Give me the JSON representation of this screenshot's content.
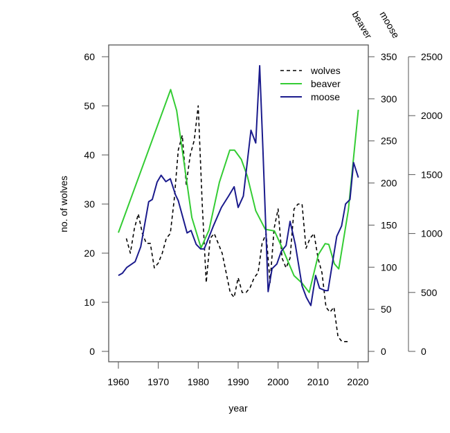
{
  "chart_data": {
    "type": "line",
    "title": "",
    "xlabel": "year",
    "ylabel": "no. of wolves",
    "xlim": [
      1960,
      2020
    ],
    "x_ticks": [
      "1960",
      "1970",
      "1980",
      "1990",
      "2000",
      "2010",
      "2020"
    ],
    "axes": {
      "wolves": {
        "label": "no. of wolves",
        "range": [
          0,
          60
        ],
        "ticks": [
          "0",
          "10",
          "20",
          "30",
          "40",
          "50",
          "60"
        ]
      },
      "beaver": {
        "label": "beaver",
        "range": [
          0,
          350
        ],
        "ticks": [
          "0",
          "50",
          "100",
          "150",
          "200",
          "250",
          "300",
          "350"
        ]
      },
      "moose": {
        "label": "moose",
        "range": [
          0,
          2500
        ],
        "ticks": [
          "0",
          "500",
          "1000",
          "1500",
          "2000",
          "2500"
        ]
      }
    },
    "legend": {
      "position": "top-right",
      "entries": [
        "wolves",
        "beaver",
        "moose"
      ]
    },
    "grid": false,
    "series": [
      {
        "name": "wolves",
        "axis": "wolves",
        "color": "#000000",
        "style": "dashed",
        "x": [
          1962,
          1963,
          1964,
          1965,
          1966,
          1967,
          1968,
          1969,
          1970,
          1971,
          1972,
          1973,
          1974,
          1975,
          1976,
          1977,
          1978,
          1979,
          1980,
          1981,
          1982,
          1983,
          1984,
          1985,
          1986,
          1987,
          1988,
          1989,
          1990,
          1991,
          1992,
          1993,
          1994,
          1995,
          1996,
          1997,
          1998,
          1999,
          2000,
          2001,
          2002,
          2003,
          2004,
          2005,
          2006,
          2007,
          2008,
          2009,
          2010,
          2011,
          2012,
          2013,
          2014,
          2015,
          2016,
          2017,
          2018
        ],
        "y": [
          23,
          20,
          25,
          28,
          24,
          22,
          22,
          17,
          18,
          20,
          23,
          24,
          31,
          41,
          44,
          34,
          40,
          43,
          50,
          30,
          14,
          23,
          24,
          22,
          20,
          16,
          12,
          11,
          15,
          12,
          12,
          13,
          15,
          16,
          22,
          24,
          14,
          25,
          29,
          19,
          17,
          19,
          29,
          30,
          30,
          21,
          23,
          24,
          19,
          16,
          9,
          8,
          9,
          3,
          2,
          2,
          2
        ]
      },
      {
        "name": "beaver",
        "axis": "beaver",
        "color": "#33cc33",
        "style": "solid",
        "x": [
          1960,
          1973.1,
          1974.6,
          1978.4,
          1980.7,
          1982.7,
          1985.3,
          1987.9,
          1989.1,
          1990.8,
          1992.3,
          1994.4,
          1996.8,
          1999.1,
          2001.4,
          2004,
          2006,
          2007.8,
          2010.1,
          2011.8,
          2012.7,
          2014.1,
          2015.2,
          2017.6,
          2020.1
        ],
        "y": [
          141,
          311,
          286,
          159,
          123,
          144,
          201,
          239,
          239,
          228,
          208,
          167,
          145,
          143,
          119,
          90,
          81,
          70,
          115,
          128,
          127,
          104,
          98,
          168,
          287
        ]
      },
      {
        "name": "moose",
        "axis": "moose",
        "color": "#1a1a8c",
        "style": "solid",
        "x": [
          1960,
          1961,
          1962.1,
          1964.2,
          1965.6,
          1967.6,
          1968.5,
          1969.7,
          1970.7,
          1971.9,
          1973,
          1974.3,
          1975,
          1977.2,
          1978.2,
          1979.5,
          1980.6,
          1981.5,
          1983.8,
          1985.8,
          1987.6,
          1989,
          1990,
          1991.3,
          1993.2,
          1994.4,
          1995.4,
          1996.2,
          1997.5,
          1998.5,
          1999.7,
          2000.8,
          2002,
          2003,
          2004.3,
          2006,
          2007.1,
          2008.2,
          2009.4,
          2010.4,
          2011.8,
          2012.5,
          2014.7,
          2015.9,
          2016.9,
          2018,
          2018.9,
          2020.1
        ],
        "y": [
          644,
          663,
          712,
          761,
          888,
          1270,
          1289,
          1436,
          1494,
          1440,
          1465,
          1328,
          1279,
          1005,
          1025,
          908,
          869,
          869,
          1064,
          1221,
          1318,
          1397,
          1221,
          1318,
          1876,
          1768,
          2424,
          1710,
          507,
          702,
          741,
          849,
          898,
          1103,
          908,
          556,
          458,
          389,
          644,
          536,
          516,
          516,
          976,
          1064,
          1250,
          1289,
          1602,
          1475
        ]
      }
    ]
  }
}
